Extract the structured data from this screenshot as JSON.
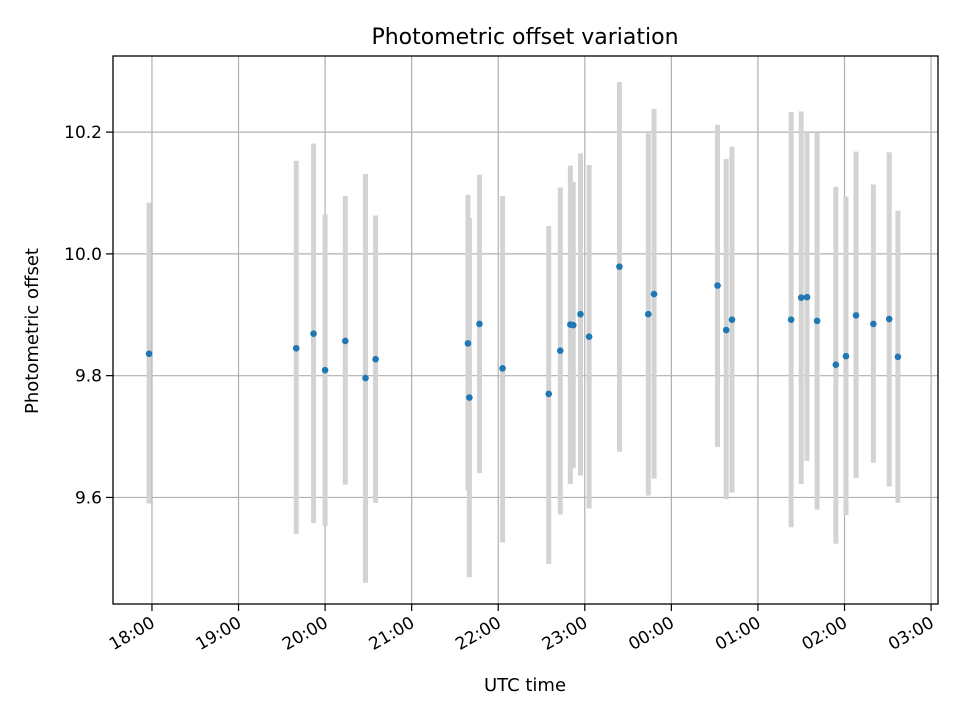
{
  "chart_data": {
    "type": "scatter",
    "title": "Photometric offset variation",
    "xlabel": "UTC time",
    "ylabel": "Photometric offset",
    "x_ticks": [
      "18:00",
      "19:00",
      "20:00",
      "21:00",
      "22:00",
      "23:00",
      "00:00",
      "01:00",
      "02:00",
      "03:00"
    ],
    "y_ticks": [
      "9.6",
      "9.8",
      "10.0",
      "10.2"
    ],
    "xlim_hours": [
      17.55,
      27.08
    ],
    "ylim": [
      9.425,
      10.325
    ],
    "grid": true,
    "marker_color": "#1f77b4",
    "errorbar_color": "#d3d3d3",
    "points": [
      {
        "t": "17:58",
        "y": 9.836,
        "lo": 9.59,
        "hi": 10.084
      },
      {
        "t": "19:40",
        "y": 9.845,
        "lo": 9.54,
        "hi": 10.153
      },
      {
        "t": "19:52",
        "y": 9.869,
        "lo": 9.558,
        "hi": 10.181
      },
      {
        "t": "20:00",
        "y": 9.809,
        "lo": 9.553,
        "hi": 10.065
      },
      {
        "t": "20:14",
        "y": 9.857,
        "lo": 9.621,
        "hi": 10.095
      },
      {
        "t": "20:28",
        "y": 9.796,
        "lo": 9.46,
        "hi": 10.131
      },
      {
        "t": "20:35",
        "y": 9.827,
        "lo": 9.591,
        "hi": 10.063
      },
      {
        "t": "21:39",
        "y": 9.853,
        "lo": 9.612,
        "hi": 10.097
      },
      {
        "t": "21:40",
        "y": 9.764,
        "lo": 9.469,
        "hi": 10.059
      },
      {
        "t": "21:47",
        "y": 9.885,
        "lo": 9.64,
        "hi": 10.13
      },
      {
        "t": "22:03",
        "y": 9.812,
        "lo": 9.526,
        "hi": 10.095
      },
      {
        "t": "22:35",
        "y": 9.77,
        "lo": 9.491,
        "hi": 10.046
      },
      {
        "t": "22:43",
        "y": 9.841,
        "lo": 9.572,
        "hi": 10.109
      },
      {
        "t": "22:50",
        "y": 9.884,
        "lo": 9.622,
        "hi": 10.145
      },
      {
        "t": "22:52",
        "y": 9.883,
        "lo": 9.648,
        "hi": 10.118
      },
      {
        "t": "22:57",
        "y": 9.901,
        "lo": 9.636,
        "hi": 10.165
      },
      {
        "t": "23:03",
        "y": 9.864,
        "lo": 9.582,
        "hi": 10.146
      },
      {
        "t": "23:24",
        "y": 9.979,
        "lo": 9.675,
        "hi": 10.282
      },
      {
        "t": "23:44",
        "y": 9.901,
        "lo": 9.603,
        "hi": 10.198
      },
      {
        "t": "23:48",
        "y": 9.934,
        "lo": 9.631,
        "hi": 10.238
      },
      {
        "t": "00:32",
        "y": 9.948,
        "lo": 9.683,
        "hi": 10.212
      },
      {
        "t": "00:38",
        "y": 9.875,
        "lo": 9.597,
        "hi": 10.156
      },
      {
        "t": "00:42",
        "y": 9.892,
        "lo": 9.608,
        "hi": 10.176
      },
      {
        "t": "01:23",
        "y": 9.892,
        "lo": 9.551,
        "hi": 10.233
      },
      {
        "t": "01:30",
        "y": 9.928,
        "lo": 9.622,
        "hi": 10.234
      },
      {
        "t": "01:34",
        "y": 9.929,
        "lo": 9.66,
        "hi": 10.2
      },
      {
        "t": "01:41",
        "y": 9.89,
        "lo": 9.58,
        "hi": 10.199
      },
      {
        "t": "01:54",
        "y": 9.818,
        "lo": 9.524,
        "hi": 10.11
      },
      {
        "t": "02:01",
        "y": 9.832,
        "lo": 9.571,
        "hi": 10.094
      },
      {
        "t": "02:08",
        "y": 9.899,
        "lo": 9.632,
        "hi": 10.168
      },
      {
        "t": "02:20",
        "y": 9.885,
        "lo": 9.657,
        "hi": 10.114
      },
      {
        "t": "02:31",
        "y": 9.893,
        "lo": 9.618,
        "hi": 10.167
      },
      {
        "t": "02:37",
        "y": 9.831,
        "lo": 9.591,
        "hi": 10.071
      }
    ]
  }
}
